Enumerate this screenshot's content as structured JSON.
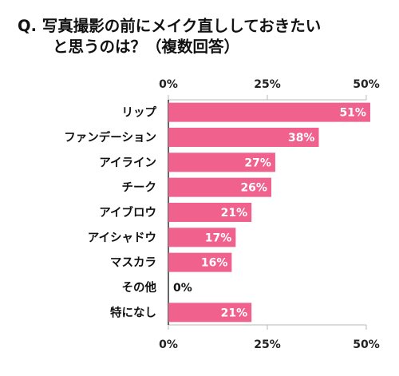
{
  "title": {
    "line1": "Q. 写真撮影の前にメイク直ししておきたい",
    "line2": "と思うのは？（複数回答）"
  },
  "colors": {
    "bar": "#f0618e",
    "axis": "#333333",
    "grid": "#b8b8b8"
  },
  "chart_data": {
    "type": "bar",
    "orientation": "horizontal",
    "categories": [
      "リップ",
      "ファンデーション",
      "アイライン",
      "チーク",
      "アイブロウ",
      "アイシャドウ",
      "マスカラ",
      "その他",
      "特になし"
    ],
    "values": [
      51,
      38,
      27,
      26,
      21,
      17,
      16,
      0,
      21
    ],
    "value_labels": [
      "51%",
      "38%",
      "27%",
      "26%",
      "21%",
      "17%",
      "16%",
      "0%",
      "21%"
    ],
    "xlim": [
      0,
      50
    ],
    "x_ticks": [
      0,
      25,
      50
    ],
    "x_tick_labels": [
      "0%",
      "25%",
      "50%"
    ],
    "tick_labels_top_and_bottom": true,
    "grid": false
  }
}
